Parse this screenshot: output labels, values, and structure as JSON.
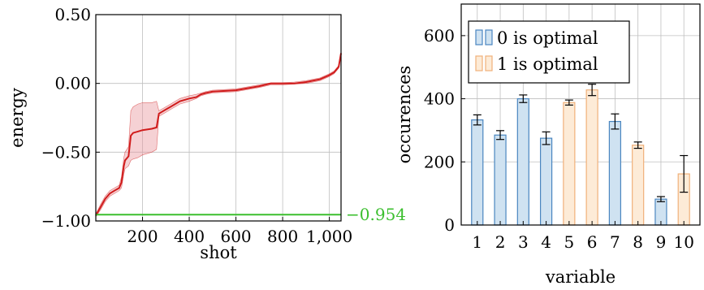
{
  "colors": {
    "line_red": "#d01c1c",
    "band_red": "#e89aa0",
    "ref_green": "#3cbf2f",
    "bar0_fill": "#cfe2f1",
    "bar0_edge": "#4a86c0",
    "bar1_fill": "#fdebd7",
    "bar1_edge": "#f0b07a",
    "grid": "#bfbfbf"
  },
  "chart_data": [
    {
      "type": "line",
      "xlabel": "shot",
      "ylabel": "energy",
      "xlim": [
        0,
        1050
      ],
      "ylim": [
        -1.0,
        0.5
      ],
      "xticks": [
        200,
        400,
        600,
        800,
        1000
      ],
      "xtick_labels": [
        "200",
        "400",
        "600",
        "800",
        "1,000"
      ],
      "yticks": [
        -1.0,
        -0.5,
        0.0,
        0.5
      ],
      "ytick_labels": [
        "−1.00",
        "−0.50",
        "0.00",
        "0.50"
      ],
      "grid": true,
      "reference_line": {
        "y": -0.954,
        "label": "−0.954"
      },
      "series": [
        {
          "x": [
            0,
            20,
            40,
            60,
            80,
            100,
            110,
            120,
            125,
            140,
            150,
            160,
            180,
            200,
            240,
            260,
            270,
            280,
            300,
            320,
            360,
            400,
            430,
            450,
            470,
            500,
            600,
            700,
            750,
            800,
            850,
            900,
            960,
            1000,
            1020,
            1040,
            1050
          ],
          "y": [
            -0.96,
            -0.9,
            -0.84,
            -0.8,
            -0.78,
            -0.76,
            -0.72,
            -0.6,
            -0.56,
            -0.53,
            -0.38,
            -0.36,
            -0.35,
            -0.34,
            -0.33,
            -0.32,
            -0.22,
            -0.21,
            -0.19,
            -0.17,
            -0.13,
            -0.11,
            -0.1,
            -0.08,
            -0.07,
            -0.06,
            -0.05,
            -0.02,
            0.0,
            0.0,
            0.0,
            0.01,
            0.03,
            0.06,
            0.08,
            0.12,
            0.22
          ],
          "lower": [
            -0.97,
            -0.92,
            -0.86,
            -0.82,
            -0.8,
            -0.78,
            -0.76,
            -0.66,
            -0.62,
            -0.6,
            -0.56,
            -0.55,
            -0.54,
            -0.52,
            -0.5,
            -0.48,
            -0.24,
            -0.23,
            -0.21,
            -0.19,
            -0.15,
            -0.13,
            -0.11,
            -0.09,
            -0.08,
            -0.07,
            -0.06,
            -0.03,
            -0.01,
            -0.01,
            -0.005,
            0.0,
            0.02,
            0.05,
            0.07,
            0.11,
            0.21
          ],
          "upper": [
            -0.95,
            -0.88,
            -0.82,
            -0.78,
            -0.76,
            -0.74,
            -0.68,
            -0.54,
            -0.5,
            -0.46,
            -0.2,
            -0.17,
            -0.15,
            -0.14,
            -0.14,
            -0.13,
            -0.2,
            -0.19,
            -0.17,
            -0.15,
            -0.11,
            -0.09,
            -0.08,
            -0.07,
            -0.06,
            -0.05,
            -0.04,
            -0.01,
            0.005,
            0.005,
            0.01,
            0.02,
            0.04,
            0.07,
            0.09,
            0.13,
            0.23
          ]
        }
      ]
    },
    {
      "type": "bar",
      "xlabel": "variable",
      "ylabel": "occurences",
      "ylim": [
        0,
        700
      ],
      "yticks": [
        0,
        200,
        400,
        600
      ],
      "ytick_labels": [
        "0",
        "200",
        "400",
        "600"
      ],
      "grid": true,
      "categories": [
        "1",
        "2",
        "3",
        "4",
        "5",
        "6",
        "7",
        "8",
        "9",
        "10"
      ],
      "values": [
        333,
        285,
        400,
        275,
        388,
        428,
        328,
        253,
        82,
        162
      ],
      "errors": [
        16,
        14,
        12,
        20,
        8,
        18,
        24,
        10,
        8,
        58
      ],
      "optimal": [
        0,
        0,
        0,
        0,
        1,
        1,
        0,
        1,
        0,
        1
      ],
      "legend": {
        "position": "top-left",
        "entries": [
          "0 is optimal",
          "1 is optimal"
        ]
      }
    }
  ]
}
